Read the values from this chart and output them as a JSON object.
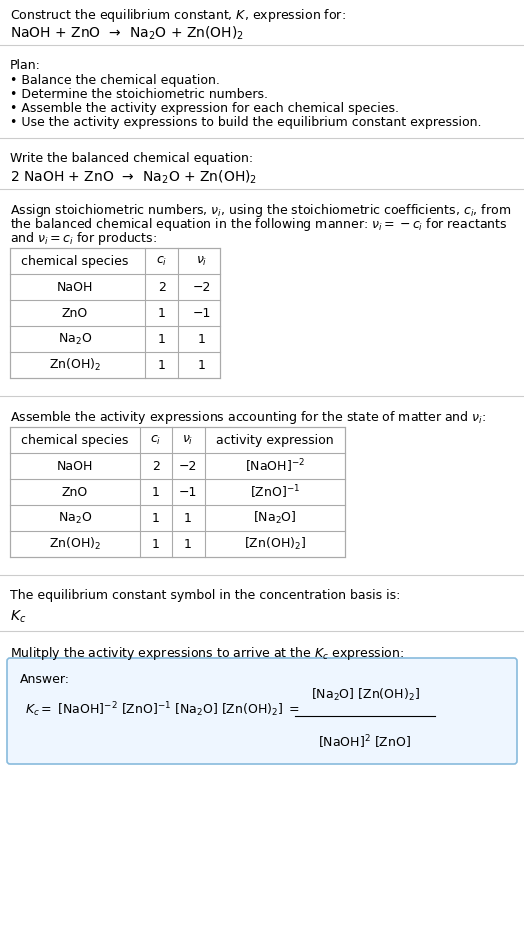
{
  "title_line1": "Construct the equilibrium constant, $K$, expression for:",
  "title_line2": "NaOH + ZnO  →  Na$_2$O + Zn(OH)$_2$",
  "plan_header": "Plan:",
  "plan_items": [
    "• Balance the chemical equation.",
    "• Determine the stoichiometric numbers.",
    "• Assemble the activity expression for each chemical species.",
    "• Use the activity expressions to build the equilibrium constant expression."
  ],
  "balanced_header": "Write the balanced chemical equation:",
  "balanced_eq": "2 NaOH + ZnO  →  Na$_2$O + Zn(OH)$_2$",
  "stoich_header": "Assign stoichiometric numbers, $\\nu_i$, using the stoichiometric coefficients, $c_i$, from\nthe balanced chemical equation in the following manner: $\\nu_i = -c_i$ for reactants\nand $\\nu_i = c_i$ for products:",
  "table1_cols": [
    "chemical species",
    "$c_i$",
    "$\\nu_i$"
  ],
  "table1_rows": [
    [
      "NaOH",
      "2",
      "−2"
    ],
    [
      "ZnO",
      "1",
      "−1"
    ],
    [
      "Na$_2$O",
      "1",
      "1"
    ],
    [
      "Zn(OH)$_2$",
      "1",
      "1"
    ]
  ],
  "activity_header": "Assemble the activity expressions accounting for the state of matter and $\\nu_i$:",
  "table2_cols": [
    "chemical species",
    "$c_i$",
    "$\\nu_i$",
    "activity expression"
  ],
  "table2_rows": [
    [
      "NaOH",
      "2",
      "−2",
      "[NaOH]$^{-2}$"
    ],
    [
      "ZnO",
      "1",
      "−1",
      "[ZnO]$^{-1}$"
    ],
    [
      "Na$_2$O",
      "1",
      "1",
      "[Na$_2$O]"
    ],
    [
      "Zn(OH)$_2$",
      "1",
      "1",
      "[Zn(OH)$_2$]"
    ]
  ],
  "kc_symbol_header": "The equilibrium constant symbol in the concentration basis is:",
  "kc_symbol": "$K_c$",
  "multiply_header": "Mulitply the activity expressions to arrive at the $K_c$ expression:",
  "answer_label": "Answer:",
  "answer_eq_line1": "$K_c = $ [NaOH]$^{-2}$ [ZnO]$^{-1}$ [Na$_2$O] [Zn(OH)$_2$] $= \\dfrac{\\text{[Na}_2\\text{O] [Zn(OH)}_2\\text{]}}{\\text{[NaOH]}^2 \\text{[ZnO]}}$",
  "bg_color": "#ffffff",
  "text_color": "#000000",
  "table_header_bg": "#ffffff",
  "table_border_color": "#aaaaaa",
  "answer_box_bg": "#eef6ff",
  "answer_box_border": "#88bbdd",
  "separator_color": "#cccccc",
  "font_size": 9,
  "fig_width": 5.24,
  "fig_height": 9.49
}
